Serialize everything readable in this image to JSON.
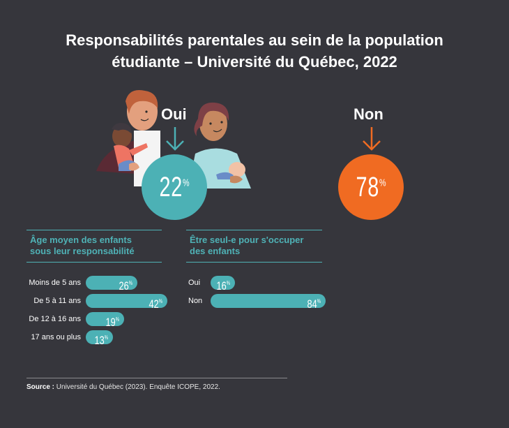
{
  "title_line1": "Responsabilités parentales au sein de la population",
  "title_line2": "étudiante – Université du Québec, 2022",
  "colors": {
    "background": "#36363c",
    "teal": "#4cb1b5",
    "orange": "#f06b22",
    "text": "#ffffff"
  },
  "oui": {
    "label": "Oui",
    "value": "22",
    "unit": "%"
  },
  "non": {
    "label": "Non",
    "value": "78",
    "unit": "%"
  },
  "left_section": {
    "title_line1": "Âge moyen des enfants",
    "title_line2": "sous leur responsabilité"
  },
  "right_section": {
    "title_line1": "Être seul-e pour s'occuper",
    "title_line2": "des enfants"
  },
  "chart_data": [
    {
      "type": "pie",
      "title": "Responsabilités parentales au sein de la population étudiante – Université du Québec, 2022",
      "categories": [
        "Oui",
        "Non"
      ],
      "values": [
        22,
        78
      ],
      "unit": "%"
    },
    {
      "type": "bar",
      "orientation": "horizontal",
      "title": "Âge moyen des enfants sous leur responsabilité",
      "categories": [
        "Moins de 5 ans",
        "De 5 à 11 ans",
        "De 12 à 16 ans",
        "17 ans ou plus"
      ],
      "values": [
        26,
        42,
        19,
        13
      ],
      "unit": "%"
    },
    {
      "type": "bar",
      "orientation": "horizontal",
      "title": "Être seul-e pour s'occuper des enfants",
      "categories": [
        "Oui",
        "Non"
      ],
      "values": [
        16,
        84
      ],
      "unit": "%"
    }
  ],
  "source_label": "Source :",
  "source_text": " Université du Québec (2023). Enquête ICOPE, 2022."
}
